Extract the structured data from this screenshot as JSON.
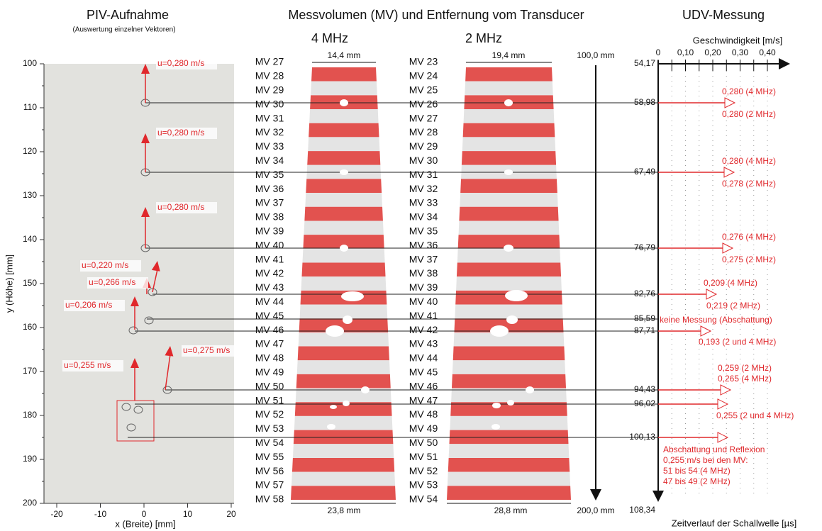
{
  "titles": {
    "piv": "PIV-Aufnahme",
    "piv_sub": "(Auswertung einzelner Vektoren)",
    "mv": "Messvolumen (MV) und Entfernung vom Transducer",
    "udv": "UDV-Messung"
  },
  "piv": {
    "y_axis_label": "y (Höhe) [mm]",
    "x_axis_label": "x (Breite) [mm]",
    "y_ticks": [
      "100",
      "110",
      "120",
      "130",
      "140",
      "150",
      "160",
      "170",
      "180",
      "190",
      "200"
    ],
    "x_ticks": [
      "-20",
      "-10",
      "0",
      "10",
      "20"
    ],
    "vectors": [
      "u=0,280 m/s",
      "u=0,280 m/s",
      "u=0,280 m/s",
      "u=0,220 m/s",
      "u=0,266 m/s",
      "u=0,206 m/s",
      "u=0,275 m/s",
      "u=0,255 m/s"
    ]
  },
  "mv_4mhz": {
    "label": "4 MHz",
    "top_width": "14,4 mm",
    "bottom_width": "23,8 mm",
    "volumes": [
      "MV 27",
      "MV 28",
      "MV 29",
      "MV 30",
      "MV 31",
      "MV 32",
      "MV 33",
      "MV 34",
      "MV 35",
      "MV 36",
      "MV 37",
      "MV 38",
      "MV 39",
      "MV 40",
      "MV 41",
      "MV 42",
      "MV 43",
      "MV 44",
      "MV 45",
      "MV 46",
      "MV 47",
      "MV 48",
      "MV 49",
      "MV 50",
      "MV 51",
      "MV 52",
      "MV 53",
      "MV 54",
      "MV 55",
      "MV 56",
      "MV 57",
      "MV 58"
    ]
  },
  "mv_2mhz": {
    "label": "2 MHz",
    "top_width": "19,4 mm",
    "bottom_width": "28,8 mm",
    "volumes": [
      "MV 23",
      "MV 24",
      "MV 25",
      "MV 26",
      "MV 27",
      "MV 28",
      "MV 29",
      "MV 30",
      "MV 31",
      "MV 32",
      "MV 33",
      "MV 34",
      "MV 35",
      "MV 36",
      "MV 37",
      "MV 38",
      "MV 39",
      "MV 40",
      "MV 41",
      "MV 42",
      "MV 43",
      "MV 44",
      "MV 45",
      "MV 46",
      "MV 47",
      "MV 48",
      "MV 49",
      "MV 50",
      "MV 51",
      "MV 52",
      "MV 53",
      "MV 54"
    ]
  },
  "distance": {
    "top": "100,0 mm",
    "bottom": "200,0 mm"
  },
  "udv": {
    "velocity_label": "Geschwindigkeit [m/s]",
    "velocity_ticks": [
      "0",
      "0,10",
      "0,20",
      "0,30",
      "0,40"
    ],
    "time_label": "Zeitverlauf der Schallwelle [µs]",
    "times": [
      "54,17",
      "58,98",
      "67,49",
      "76,79",
      "82,76",
      "85,59",
      "87,71",
      "94,43",
      "96,02",
      "100,13",
      "108,34"
    ],
    "annotations": [
      "0,280 (4 MHz)",
      "0,280 (2 MHz)",
      "0,280 (4 MHz)",
      "0,278 (2 MHz)",
      "0,276 (4 MHz)",
      "0,275 (2 MHz)",
      "0,209 (4 MHz)",
      "0,219 (2 MHz)",
      "keine Messung (Abschattung)",
      "0,193 (2 und 4 MHz)",
      "0,259 (2 MHz)",
      "0,265 (4 MHz)",
      "0,255 (2 und 4 MHz)",
      "Abschattung und Reflexion",
      "0,255 m/s bei den MV:",
      "51 bis 54 (4 MHz)",
      "47 bis 49 (2 MHz)"
    ]
  }
}
